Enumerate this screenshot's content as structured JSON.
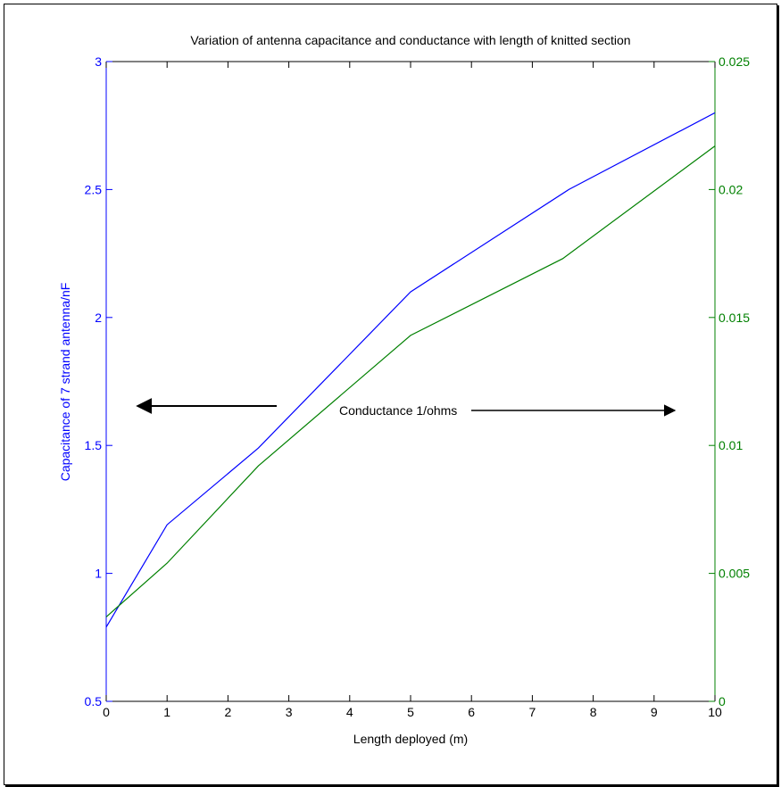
{
  "chart_data": {
    "type": "line",
    "title": "Variation of antenna capacitance and conductance with length of knitted section",
    "xlabel": "Length deployed (m)",
    "ylabel_left": "Capacitance of 7 strand antenna/nF",
    "ylabel_right": "",
    "xlim": [
      0,
      10
    ],
    "ylim_left": [
      0.5,
      3
    ],
    "ylim_right": [
      0,
      0.025
    ],
    "x_ticks": [
      "0",
      "1",
      "2",
      "3",
      "4",
      "5",
      "6",
      "7",
      "8",
      "9",
      "10"
    ],
    "y_left_ticks": [
      "0.5",
      "1",
      "1.5",
      "2",
      "2.5",
      "3"
    ],
    "y_right_ticks": [
      "0",
      "0.005",
      "0.01",
      "0.015",
      "0.02",
      "0.025"
    ],
    "left_axis_color": "#0000ff",
    "right_axis_color": "#008000",
    "grid": false,
    "series": [
      {
        "axis": "left",
        "color": "#0000ff",
        "x": [
          0,
          1,
          2.5,
          5,
          7.6,
          10
        ],
        "y": [
          0.79,
          1.19,
          1.49,
          2.1,
          2.5,
          2.8
        ]
      },
      {
        "axis": "right",
        "color": "#008000",
        "x": [
          0,
          1,
          2.5,
          5,
          7.5,
          10
        ],
        "y": [
          0.0033,
          0.0054,
          0.0092,
          0.0143,
          0.0173,
          0.0217
        ]
      }
    ],
    "annotations": [
      {
        "text": "Conductance 1/ohms",
        "arrow": "right"
      },
      {
        "arrow": "left"
      }
    ]
  }
}
